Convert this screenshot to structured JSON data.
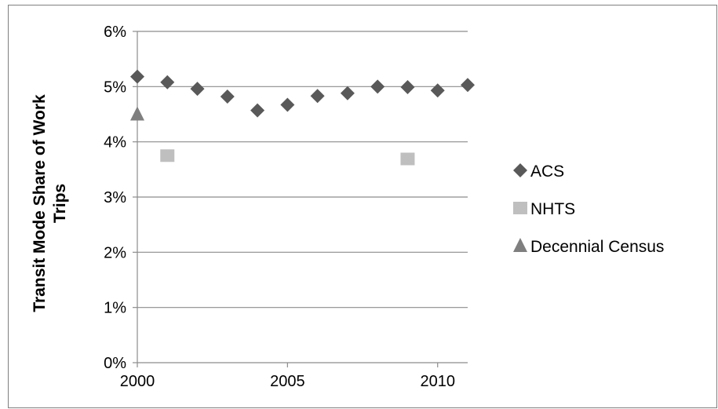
{
  "chart_data": {
    "type": "scatter",
    "title": "",
    "xlabel": "",
    "ylabel": "Transit Mode Share of Work Trips",
    "xlim": [
      2000,
      2011
    ],
    "ylim": [
      0,
      6
    ],
    "x_ticks": [
      2000,
      2005,
      2010
    ],
    "x_tick_labels": [
      "2000",
      "2005",
      "2010"
    ],
    "y_ticks": [
      0,
      1,
      2,
      3,
      4,
      5,
      6
    ],
    "y_tick_labels": [
      "0%",
      "1%",
      "2%",
      "3%",
      "4%",
      "5%",
      "6%"
    ],
    "grid": "horizontal",
    "legend_position": "right",
    "series": [
      {
        "name": "ACS",
        "marker": "diamond",
        "color": "#595959",
        "points": [
          {
            "x": 2000,
            "y": 5.18
          },
          {
            "x": 2001,
            "y": 5.08
          },
          {
            "x": 2002,
            "y": 4.96
          },
          {
            "x": 2003,
            "y": 4.82
          },
          {
            "x": 2004,
            "y": 4.57
          },
          {
            "x": 2005,
            "y": 4.67
          },
          {
            "x": 2006,
            "y": 4.83
          },
          {
            "x": 2007,
            "y": 4.88
          },
          {
            "x": 2008,
            "y": 5.0
          },
          {
            "x": 2009,
            "y": 4.99
          },
          {
            "x": 2010,
            "y": 4.93
          },
          {
            "x": 2011,
            "y": 5.03
          }
        ]
      },
      {
        "name": "NHTS",
        "marker": "square",
        "color": "#bfbfbf",
        "points": [
          {
            "x": 2001,
            "y": 3.75
          },
          {
            "x": 2009,
            "y": 3.69
          }
        ]
      },
      {
        "name": "Decennial Census",
        "marker": "triangle",
        "color": "#7f7f7f",
        "points": [
          {
            "x": 2000,
            "y": 4.5
          }
        ]
      }
    ]
  }
}
